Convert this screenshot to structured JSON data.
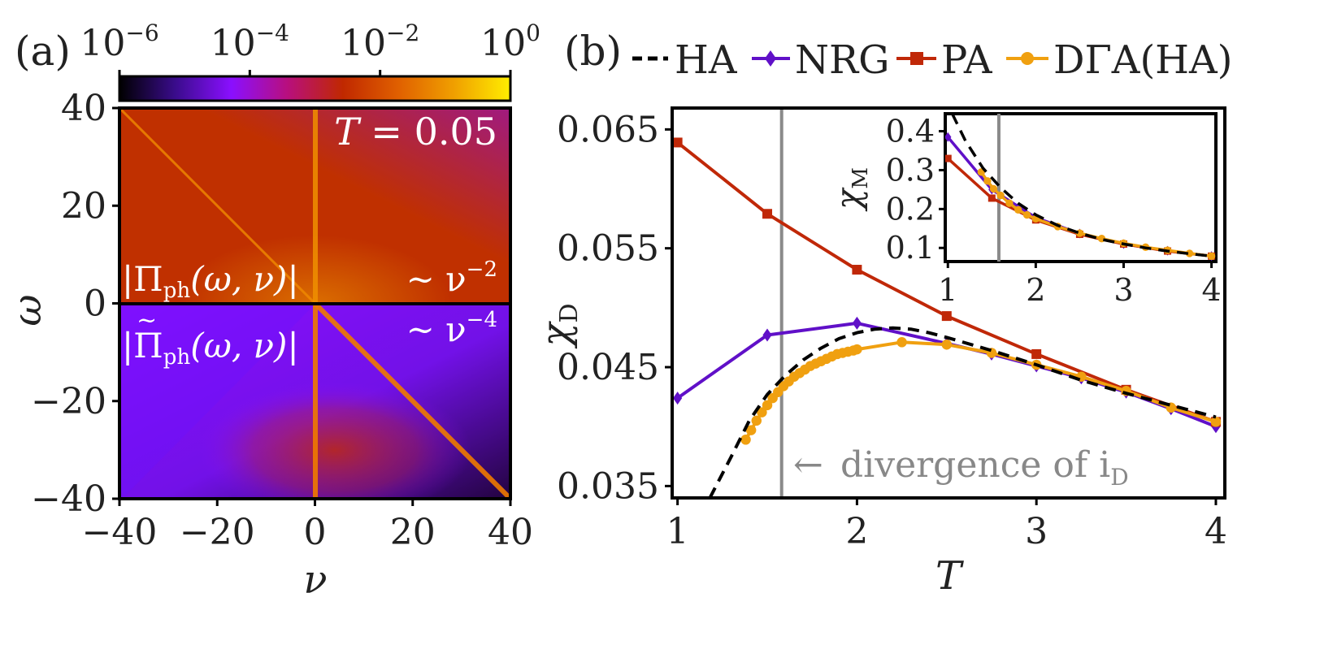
{
  "chart_data": [
    {
      "panel": "(a)",
      "type": "heatmap",
      "xlabel": "ν",
      "ylabel": "ω",
      "xlim": [
        -40,
        40
      ],
      "ylim": [
        -40,
        40
      ],
      "xticks": [
        -40,
        -20,
        0,
        20,
        40
      ],
      "yticks": [
        40,
        20,
        0,
        -20,
        -40
      ],
      "xtick_labels": [
        "−40",
        "−20",
        "0",
        "20",
        "40"
      ],
      "ytick_labels": [
        "40",
        "20",
        "0",
        "−20",
        "−40"
      ],
      "colorbar": {
        "scale": "log",
        "range": [
          1e-06,
          1
        ],
        "ticks": [
          "10^-6",
          "10^-4",
          "10^-2",
          "10^0"
        ],
        "tick_base": "10",
        "tick_exponents": [
          "−6",
          "−4",
          "−2",
          "0"
        ],
        "colors": [
          "#000000",
          "#3a0c8c",
          "#8a0fff",
          "#b80f7e",
          "#c02800",
          "#e06000",
          "#f0a000",
          "#ffee00"
        ]
      },
      "annotations": {
        "temperature": "T = 0.05",
        "upper_label": "|Π_ph(ω, ν)|",
        "upper_scaling": "∼ ν^−2",
        "lower_label": "|Π̃_ph(ω, ν)|",
        "lower_scaling": "∼ ν^−4"
      },
      "label_parts": {
        "T_sym": "T",
        "T_eq": " = 0.05",
        "bar": "|",
        "Pi": "Π",
        "ph": "ph",
        "args": "(ω, ν)",
        "tilde": "~",
        "tilde_sym": "∼ ν",
        "exp_upper": "−2",
        "exp_lower": "−4"
      }
    },
    {
      "panel": "(b)",
      "type": "line",
      "xlabel": "T",
      "ylabel": "χ",
      "ylabel_sub": "D",
      "xlim": [
        0.97,
        4.05
      ],
      "ylim": [
        0.034,
        0.0668
      ],
      "xticks": [
        1,
        2,
        3,
        4
      ],
      "yticks": [
        0.035,
        0.045,
        0.055,
        0.065
      ],
      "ytick_labels": [
        "0.035",
        "0.045",
        "0.055",
        "0.065"
      ],
      "vline_x": 1.58,
      "annotation": "divergence of i",
      "annotation_sub": "D",
      "annotation_arrow": "←",
      "series": [
        {
          "name": "HA",
          "color": "#000000",
          "style": "dashed",
          "x": [
            1.18,
            1.3,
            1.4,
            1.5,
            1.6,
            1.7,
            1.8,
            1.9,
            2.0,
            2.1,
            2.2,
            2.3,
            2.4,
            2.5,
            2.75,
            3.0,
            3.25,
            3.5,
            3.75,
            4.0
          ],
          "y": [
            0.034,
            0.0375,
            0.0405,
            0.0427,
            0.0443,
            0.0456,
            0.0466,
            0.0474,
            0.0479,
            0.0482,
            0.0483,
            0.0482,
            0.0479,
            0.0475,
            0.0464,
            0.0452,
            0.0439,
            0.0428,
            0.0418,
            0.0408
          ]
        },
        {
          "name": "NRG",
          "color": "#6010c8",
          "marker": "diamond",
          "x": [
            1.0,
            1.5,
            2.0,
            2.5,
            2.75,
            3.0,
            3.25,
            3.5,
            3.75,
            4.0
          ],
          "y": [
            0.0424,
            0.0477,
            0.0487,
            0.047,
            0.0461,
            0.0451,
            0.0441,
            0.0429,
            0.0415,
            0.04
          ]
        },
        {
          "name": "PA",
          "color": "#c02808",
          "marker": "square",
          "x": [
            1.0,
            1.5,
            2.0,
            2.5,
            3.0,
            3.5,
            4.0
          ],
          "y": [
            0.0639,
            0.0579,
            0.0532,
            0.0493,
            0.0461,
            0.0431,
            0.0404
          ]
        },
        {
          "name": "DΓA(HA)",
          "color": "#f0a010",
          "marker": "circle",
          "x": [
            1.38,
            1.41,
            1.44,
            1.47,
            1.5,
            1.53,
            1.56,
            1.59,
            1.62,
            1.65,
            1.68,
            1.71,
            1.74,
            1.77,
            1.8,
            1.83,
            1.86,
            1.89,
            1.92,
            1.95,
            1.98,
            2.0,
            2.25,
            2.5,
            2.75,
            3.0,
            3.25,
            3.5,
            3.75,
            4.0
          ],
          "y": [
            0.0389,
            0.0397,
            0.0405,
            0.0412,
            0.0418,
            0.0424,
            0.0429,
            0.0434,
            0.0438,
            0.0442,
            0.0445,
            0.0448,
            0.0451,
            0.0453,
            0.0455,
            0.0457,
            0.0459,
            0.0461,
            0.0462,
            0.0463,
            0.0464,
            0.0465,
            0.0471,
            0.0469,
            0.0462,
            0.0452,
            0.0442,
            0.043,
            0.0416,
            0.0404
          ]
        }
      ],
      "legend": {
        "placement": "top",
        "entries": [
          "HA",
          "NRG",
          "PA",
          "DΓA(HA)"
        ]
      },
      "inset": {
        "ylabel": "χ",
        "ylabel_sub": "M",
        "xlim": [
          0.97,
          4.05
        ],
        "ylim": [
          0.065,
          0.445
        ],
        "xticks": [
          1,
          2,
          3,
          4
        ],
        "yticks": [
          0.1,
          0.2,
          0.3,
          0.4
        ],
        "ytick_labels": [
          "0.1",
          "0.2",
          "0.3",
          "0.4"
        ],
        "vline_x": 1.58,
        "series": [
          {
            "name": "HA",
            "color": "#000000",
            "style": "dashed",
            "x": [
              1.05,
              1.2,
              1.4,
              1.6,
              1.8,
              2.0,
              2.25,
              2.5,
              2.75,
              3.0,
              3.25,
              3.5,
              3.75,
              4.0
            ],
            "y": [
              0.445,
              0.375,
              0.305,
              0.255,
              0.215,
              0.185,
              0.158,
              0.138,
              0.122,
              0.11,
              0.1,
              0.092,
              0.085,
              0.079
            ]
          },
          {
            "name": "NRG",
            "color": "#6010c8",
            "marker": "diamond",
            "x": [
              1.0,
              1.5,
              2.0,
              2.5,
              3.0,
              3.5,
              4.0
            ],
            "y": [
              0.385,
              0.25,
              0.178,
              0.137,
              0.11,
              0.093,
              0.079
            ]
          },
          {
            "name": "PA",
            "color": "#c02808",
            "marker": "square",
            "x": [
              1.0,
              1.5,
              2.0,
              2.5,
              3.0,
              3.5,
              4.0
            ],
            "y": [
              0.33,
              0.228,
              0.172,
              0.135,
              0.11,
              0.092,
              0.079
            ]
          },
          {
            "name": "DΓA(HA)",
            "color": "#f0a010",
            "marker": "circle",
            "x": [
              1.38,
              1.45,
              1.52,
              1.6,
              1.7,
              1.8,
              1.9,
              2.0,
              2.25,
              2.5,
              2.75,
              3.0,
              3.25,
              3.5,
              3.75,
              4.0
            ],
            "y": [
              0.295,
              0.272,
              0.252,
              0.235,
              0.215,
              0.198,
              0.185,
              0.175,
              0.155,
              0.138,
              0.124,
              0.112,
              0.102,
              0.094,
              0.086,
              0.079
            ]
          }
        ]
      }
    }
  ]
}
